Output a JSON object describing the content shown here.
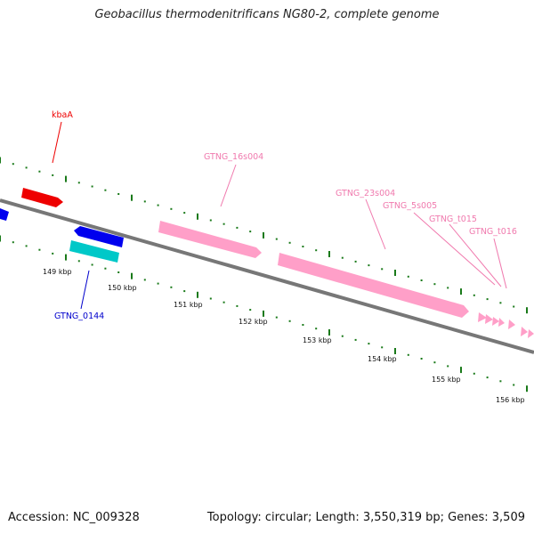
{
  "title": "Geobacillus thermodenitrificans NG80-2, complete genome",
  "footer": {
    "accession": "Accession: NC_009328",
    "summary": "Topology: circular; Length: 3,550,319 bp; Genes: 3,509"
  },
  "colors": {
    "backbone": "#777777",
    "tick": "#1a7a1a",
    "rrna": "#ff9fc8",
    "rrna_label": "#f07aae",
    "cds_forward": "#ff0000",
    "cds_reverse": "#0000ee",
    "cds_other": "#00c8c8"
  },
  "scale_labels": [
    "149 kbp",
    "150 kbp",
    "151 kbp",
    "152 kbp",
    "153 kbp",
    "154 kbp",
    "155 kbp",
    "156 kbp"
  ],
  "feature_labels": {
    "kbaA": "kbaA",
    "gtng_0144": "GTNG_0144",
    "gtng_16s004": "GTNG_16s004",
    "gtng_23s004": "GTNG_23s004",
    "gtng_5s005": "GTNG_5s005",
    "gtng_t015": "GTNG_t015",
    "gtng_t016": "GTNG_t016"
  }
}
